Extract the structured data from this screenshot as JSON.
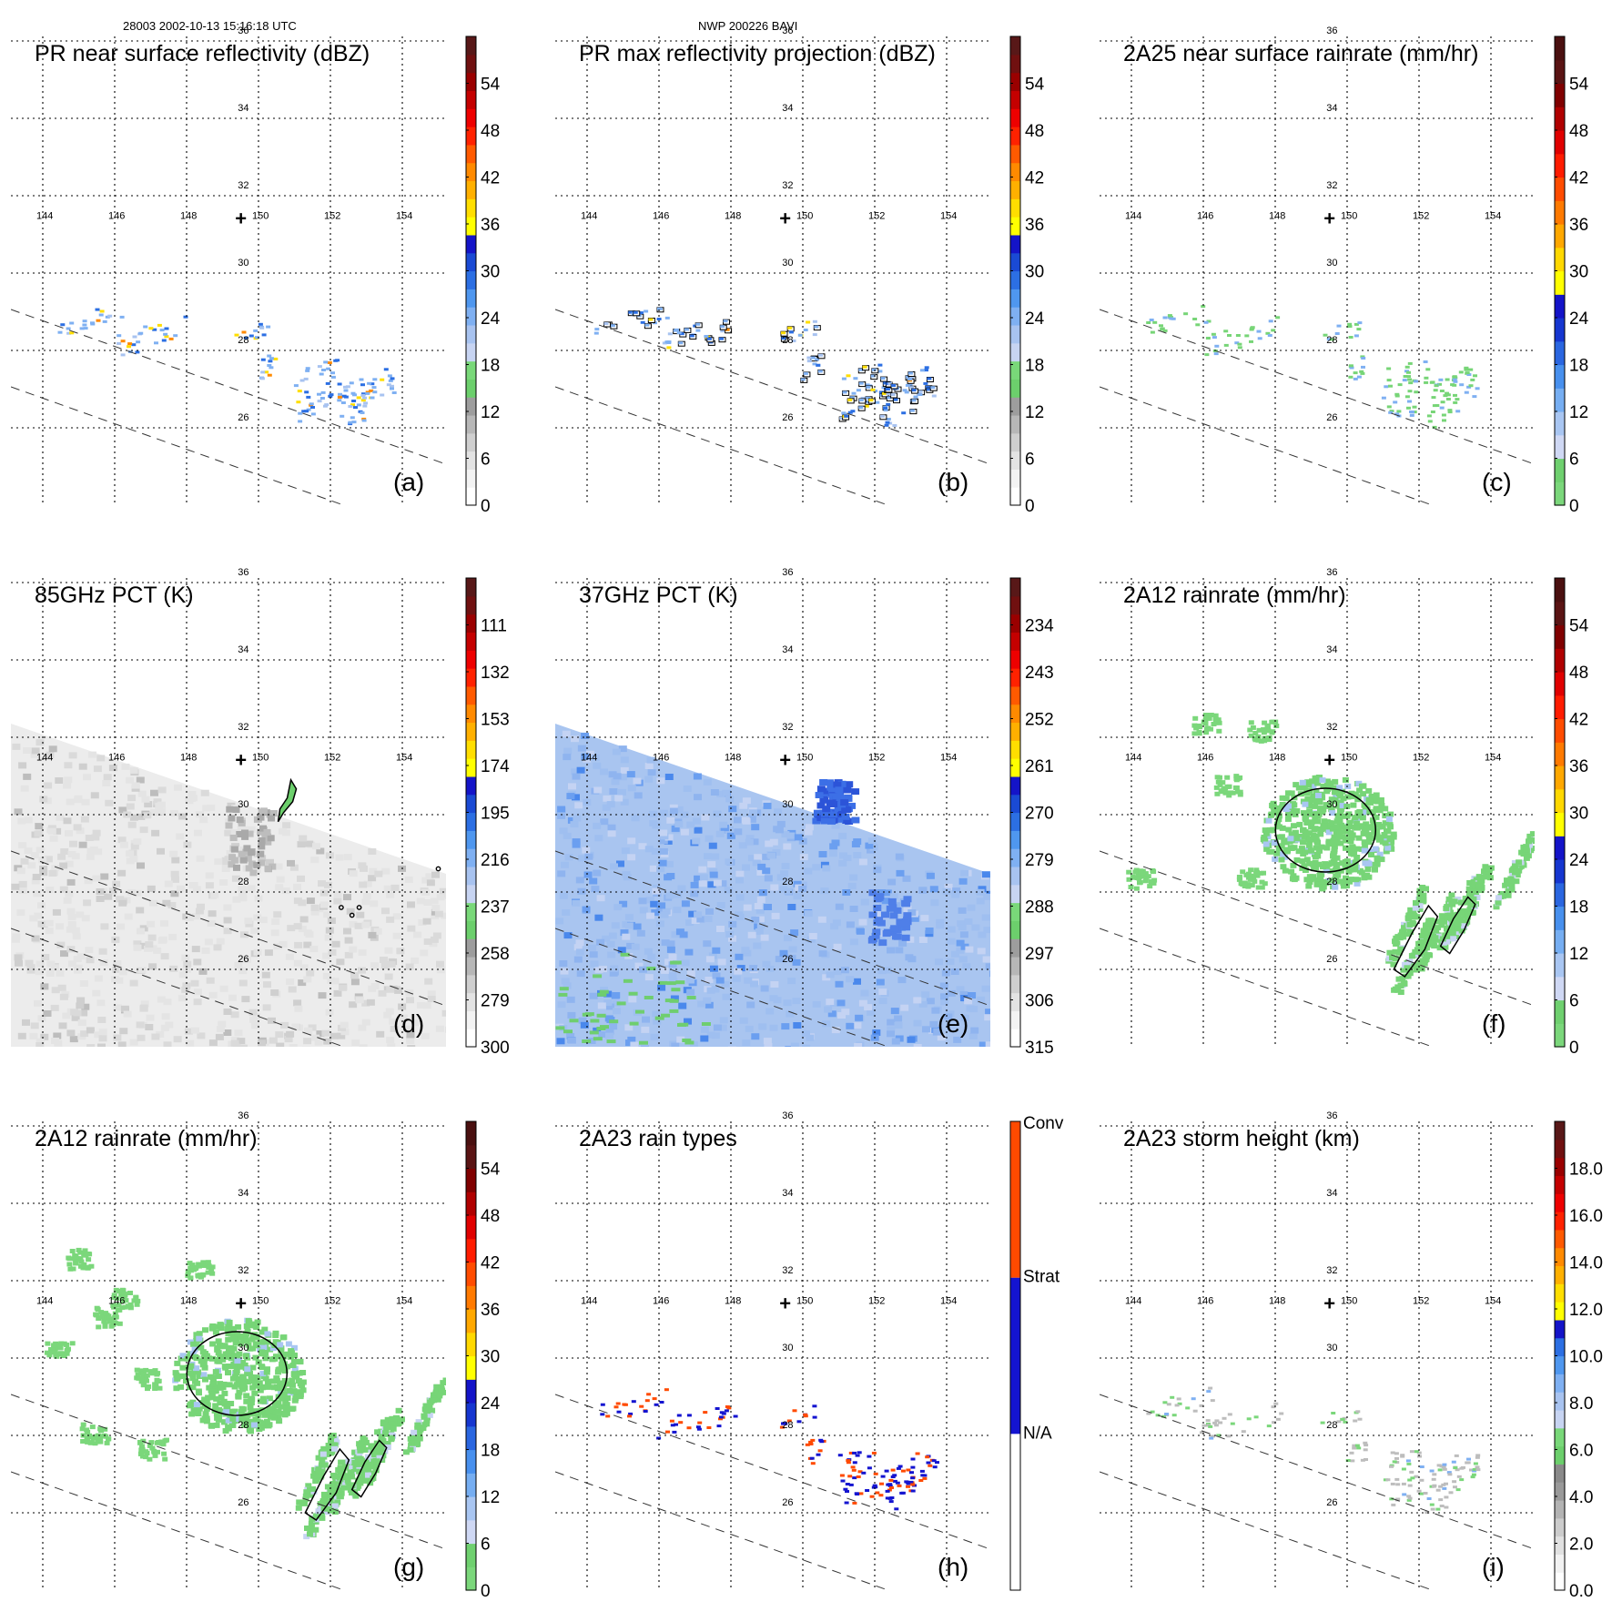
{
  "header": {
    "left": "28003 2002-10-13 15:16:18 UTC",
    "center": "NWP 200226 BAVI"
  },
  "chart_data": [
    {
      "id": "a",
      "type": "heatmap",
      "title": "PR near surface reflectivity (dBZ)",
      "panel_label": "(a)",
      "colorbar_ticks": [
        "0",
        "6",
        "12",
        "18",
        "24",
        "30",
        "36",
        "42",
        "48",
        "54"
      ],
      "colorbar_type": "numeric",
      "colorbar_scale": "dbz",
      "swath": "pr",
      "field": "pr_dbz"
    },
    {
      "id": "b",
      "type": "heatmap",
      "title": "PR max reflectivity projection (dBZ)",
      "panel_label": "(b)",
      "colorbar_ticks": [
        "0",
        "6",
        "12",
        "18",
        "24",
        "30",
        "36",
        "42",
        "48",
        "54"
      ],
      "colorbar_type": "numeric",
      "colorbar_scale": "dbz",
      "swath": "pr",
      "field": "pr_max"
    },
    {
      "id": "c",
      "type": "heatmap",
      "title": "2A25 near surface rainrate (mm/hr)",
      "panel_label": "(c)",
      "colorbar_ticks": [
        "0",
        "6",
        "12",
        "18",
        "24",
        "30",
        "36",
        "42",
        "48",
        "54"
      ],
      "colorbar_type": "numeric",
      "colorbar_scale": "rain",
      "swath": "pr",
      "field": "rain_2a25"
    },
    {
      "id": "d",
      "type": "heatmap",
      "title": "85GHz PCT (K)",
      "panel_label": "(d)",
      "colorbar_ticks": [
        "300",
        "279",
        "258",
        "237",
        "216",
        "195",
        "174",
        "153",
        "132",
        "111"
      ],
      "colorbar_type": "numeric",
      "colorbar_scale": "dbz",
      "swath": "tmi",
      "field": "pct85"
    },
    {
      "id": "e",
      "type": "heatmap",
      "title": "37GHz PCT (K)",
      "panel_label": "(e)",
      "colorbar_ticks": [
        "315",
        "306",
        "297",
        "288",
        "279",
        "270",
        "261",
        "252",
        "243",
        "234"
      ],
      "colorbar_type": "numeric",
      "colorbar_scale": "dbz",
      "swath": "tmi",
      "field": "pct37"
    },
    {
      "id": "f",
      "type": "heatmap",
      "title": "2A12 rainrate (mm/hr)",
      "panel_label": "(f)",
      "colorbar_ticks": [
        "0",
        "6",
        "12",
        "18",
        "24",
        "30",
        "36",
        "42",
        "48",
        "54"
      ],
      "colorbar_type": "numeric",
      "colorbar_scale": "rain",
      "swath": "pr",
      "field": "rain_2a12_full"
    },
    {
      "id": "g",
      "type": "heatmap",
      "title": "2A12 rainrate (mm/hr)",
      "panel_label": "(g)",
      "colorbar_ticks": [
        "0",
        "6",
        "12",
        "18",
        "24",
        "30",
        "36",
        "42",
        "48",
        "54"
      ],
      "colorbar_type": "numeric",
      "colorbar_scale": "rain",
      "swath": "pr",
      "field": "rain_2a12"
    },
    {
      "id": "h",
      "type": "heatmap",
      "title": "2A23 rain types",
      "panel_label": "(h)",
      "colorbar_ticks": [
        "N/A",
        "Strat",
        "Conv"
      ],
      "colorbar_type": "categorical",
      "swath": "pr",
      "field": "rain_type"
    },
    {
      "id": "i",
      "type": "heatmap",
      "title": "2A23 storm height (km)",
      "panel_label": "(i)",
      "colorbar_ticks": [
        "0.0",
        "2.0",
        "4.0",
        "6.0",
        "8.0",
        "10.0",
        "12.0",
        "14.0",
        "16.0",
        "18.0"
      ],
      "colorbar_type": "numeric",
      "colorbar_scale": "height",
      "swath": "pr",
      "field": "storm_height"
    }
  ],
  "map": {
    "lon_ticks": [
      "144",
      "146",
      "148",
      "150",
      "152",
      "154"
    ],
    "lat_ticks": [
      "26",
      "28",
      "30",
      "32",
      "34",
      "36"
    ],
    "center_marker": "+",
    "center_lon": 149.5,
    "center_lat": 31.4
  }
}
